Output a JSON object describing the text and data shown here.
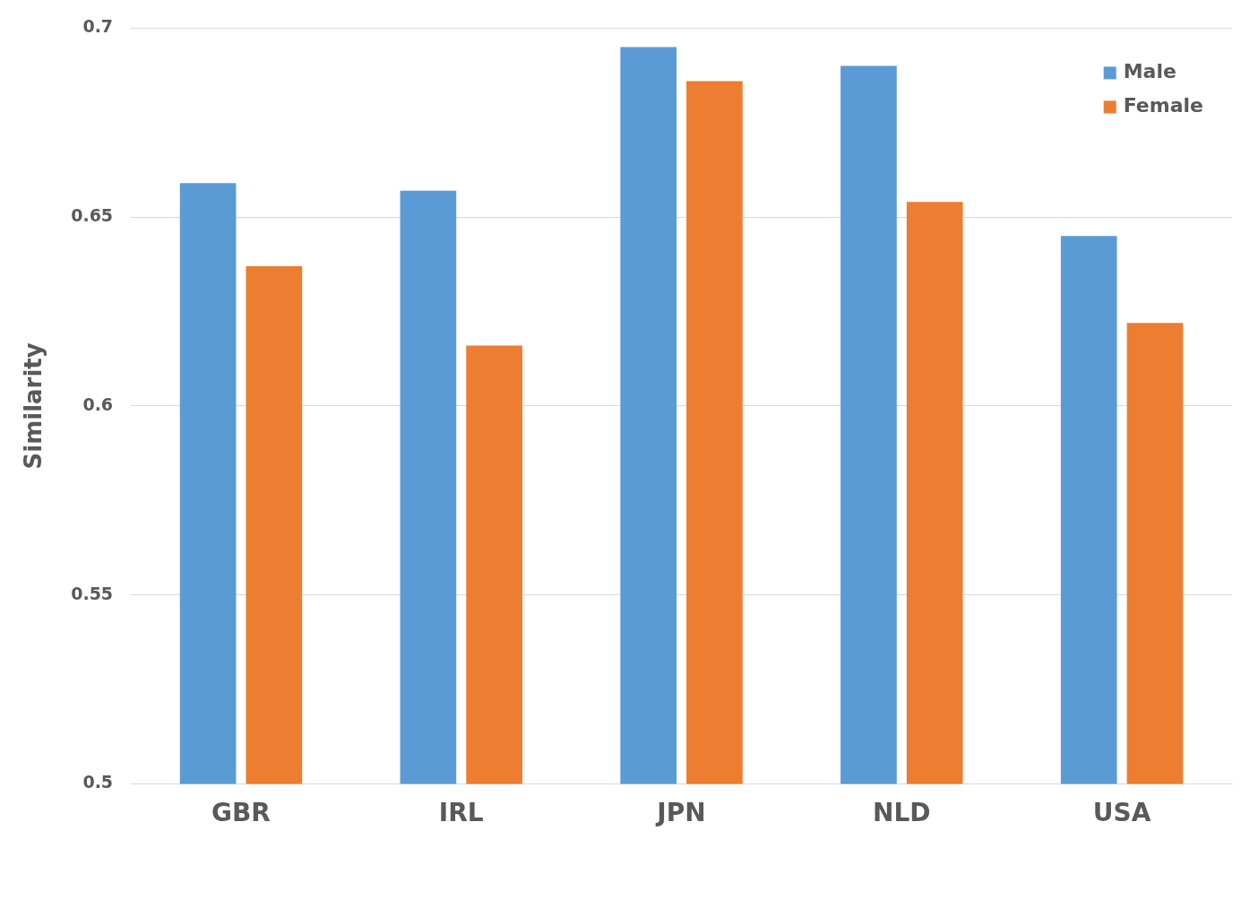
{
  "chart_data": {
    "type": "bar",
    "ylabel": "Similarity",
    "categories": [
      "GBR",
      "IRL",
      "JPN",
      "NLD",
      "USA"
    ],
    "series": [
      {
        "name": "Male",
        "color": "#5b9bd5",
        "values": [
          0.659,
          0.657,
          0.695,
          0.69,
          0.645
        ]
      },
      {
        "name": "Female",
        "color": "#ed7d31",
        "values": [
          0.637,
          0.616,
          0.686,
          0.654,
          0.622
        ]
      }
    ],
    "ylim": [
      0.5,
      0.7
    ],
    "yticks": [
      0.5,
      0.55,
      0.6,
      0.65,
      0.7
    ],
    "grid": "y",
    "legend": "top right"
  }
}
